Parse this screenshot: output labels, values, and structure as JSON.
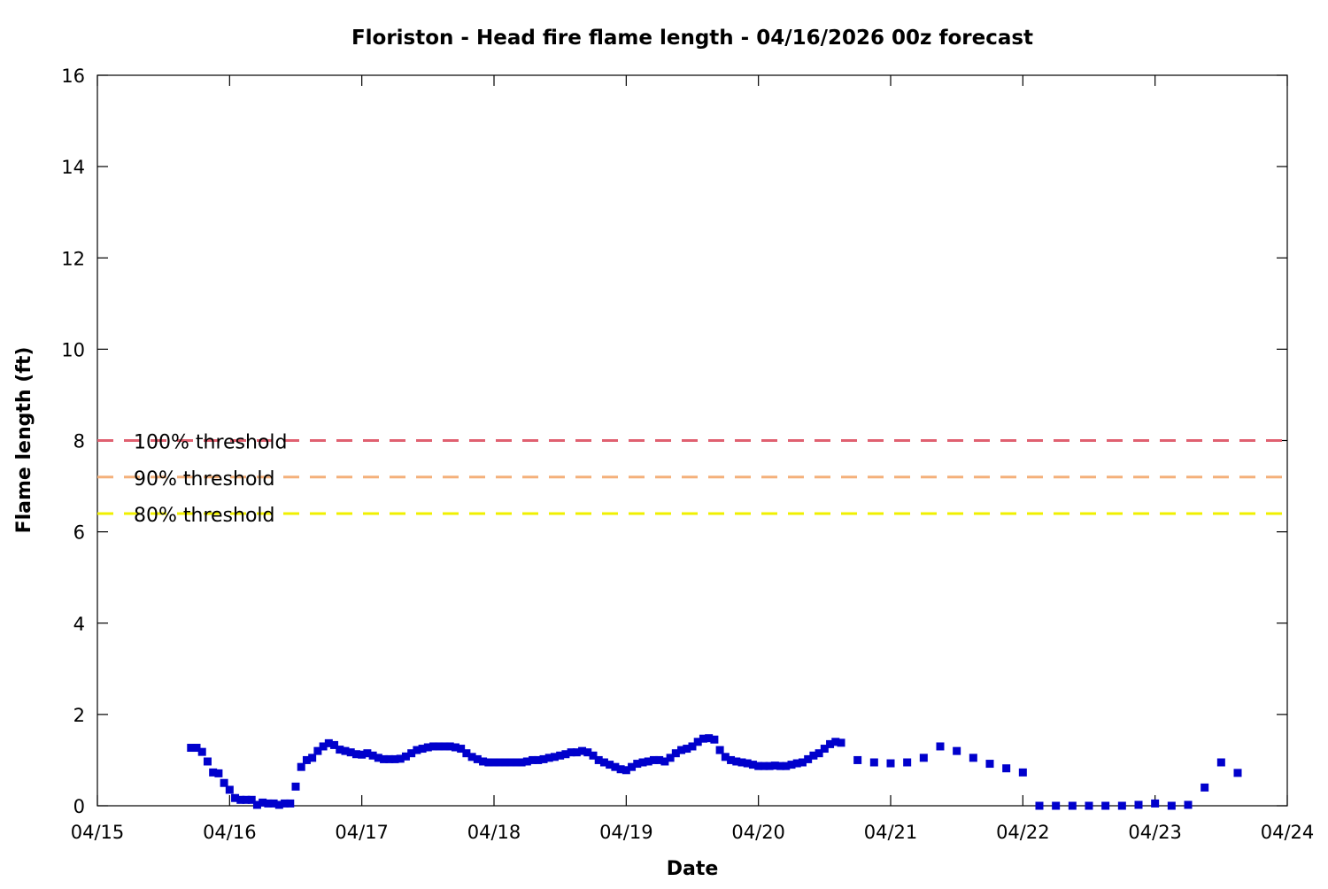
{
  "chart_data": {
    "type": "scatter",
    "title": "Floriston - Head fire flame length - 04/16/2026 00z forecast",
    "xlabel": "Date",
    "ylabel": "Flame length (ft)",
    "xlim": [
      "2026-04-15T00:00",
      "2026-04-24T00:00"
    ],
    "ylim": [
      0,
      16
    ],
    "x_ticks": [
      "04/15",
      "04/16",
      "04/17",
      "04/18",
      "04/19",
      "04/20",
      "04/21",
      "04/22",
      "04/23",
      "04/24"
    ],
    "y_ticks": [
      0,
      2,
      4,
      6,
      8,
      10,
      12,
      14,
      16
    ],
    "grid": false,
    "legend_position": "left",
    "colors": {
      "series": "#0000cc",
      "threshold_100": "#e06070",
      "threshold_90": "#f4b07a",
      "threshold_80": "#f0f000"
    },
    "thresholds": [
      {
        "name": "100% threshold",
        "value": 8.0,
        "color": "#e06070"
      },
      {
        "name": "90% threshold",
        "value": 7.2,
        "color": "#f4b07a"
      },
      {
        "name": "80% threshold",
        "value": 6.4,
        "color": "#f0f000"
      }
    ],
    "series": [
      {
        "name": "",
        "color": "#0000cc",
        "points": [
          [
            "04/15 17:00",
            1.27
          ],
          [
            "04/15 18:00",
            1.27
          ],
          [
            "04/15 19:00",
            1.18
          ],
          [
            "04/15 20:00",
            0.97
          ],
          [
            "04/15 21:00",
            0.73
          ],
          [
            "04/15 22:00",
            0.71
          ],
          [
            "04/15 23:00",
            0.5
          ],
          [
            "04/16 00:00",
            0.35
          ],
          [
            "04/16 01:00",
            0.17
          ],
          [
            "04/16 02:00",
            0.13
          ],
          [
            "04/16 03:00",
            0.13
          ],
          [
            "04/16 04:00",
            0.13
          ],
          [
            "04/16 05:00",
            0.02
          ],
          [
            "04/16 06:00",
            0.07
          ],
          [
            "04/16 07:00",
            0.05
          ],
          [
            "04/16 08:00",
            0.05
          ],
          [
            "04/16 09:00",
            0.02
          ],
          [
            "04/16 10:00",
            0.05
          ],
          [
            "04/16 11:00",
            0.05
          ],
          [
            "04/16 12:00",
            0.42
          ],
          [
            "04/16 13:00",
            0.85
          ],
          [
            "04/16 14:00",
            1.0
          ],
          [
            "04/16 15:00",
            1.05
          ],
          [
            "04/16 16:00",
            1.2
          ],
          [
            "04/16 17:00",
            1.3
          ],
          [
            "04/16 18:00",
            1.37
          ],
          [
            "04/16 19:00",
            1.33
          ],
          [
            "04/16 20:00",
            1.23
          ],
          [
            "04/16 21:00",
            1.2
          ],
          [
            "04/16 22:00",
            1.17
          ],
          [
            "04/16 23:00",
            1.13
          ],
          [
            "04/17 00:00",
            1.12
          ],
          [
            "04/17 01:00",
            1.15
          ],
          [
            "04/17 02:00",
            1.1
          ],
          [
            "04/17 03:00",
            1.05
          ],
          [
            "04/17 04:00",
            1.02
          ],
          [
            "04/17 05:00",
            1.02
          ],
          [
            "04/17 06:00",
            1.02
          ],
          [
            "04/17 07:00",
            1.03
          ],
          [
            "04/17 08:00",
            1.08
          ],
          [
            "04/17 09:00",
            1.15
          ],
          [
            "04/17 10:00",
            1.22
          ],
          [
            "04/17 11:00",
            1.25
          ],
          [
            "04/17 12:00",
            1.28
          ],
          [
            "04/17 13:00",
            1.3
          ],
          [
            "04/17 14:00",
            1.3
          ],
          [
            "04/17 15:00",
            1.3
          ],
          [
            "04/17 16:00",
            1.3
          ],
          [
            "04/17 17:00",
            1.28
          ],
          [
            "04/17 18:00",
            1.25
          ],
          [
            "04/17 19:00",
            1.15
          ],
          [
            "04/17 20:00",
            1.07
          ],
          [
            "04/17 21:00",
            1.02
          ],
          [
            "04/17 22:00",
            0.97
          ],
          [
            "04/17 23:00",
            0.95
          ],
          [
            "04/18 00:00",
            0.95
          ],
          [
            "04/18 01:00",
            0.95
          ],
          [
            "04/18 02:00",
            0.95
          ],
          [
            "04/18 03:00",
            0.95
          ],
          [
            "04/18 04:00",
            0.95
          ],
          [
            "04/18 05:00",
            0.95
          ],
          [
            "04/18 06:00",
            0.97
          ],
          [
            "04/18 07:00",
            1.0
          ],
          [
            "04/18 08:00",
            1.0
          ],
          [
            "04/18 09:00",
            1.02
          ],
          [
            "04/18 10:00",
            1.05
          ],
          [
            "04/18 11:00",
            1.07
          ],
          [
            "04/18 12:00",
            1.1
          ],
          [
            "04/18 13:00",
            1.13
          ],
          [
            "04/18 14:00",
            1.17
          ],
          [
            "04/18 15:00",
            1.17
          ],
          [
            "04/18 16:00",
            1.2
          ],
          [
            "04/18 17:00",
            1.17
          ],
          [
            "04/18 18:00",
            1.1
          ],
          [
            "04/18 19:00",
            1.0
          ],
          [
            "04/18 20:00",
            0.95
          ],
          [
            "04/18 21:00",
            0.9
          ],
          [
            "04/18 22:00",
            0.85
          ],
          [
            "04/18 23:00",
            0.8
          ],
          [
            "04/19 00:00",
            0.78
          ],
          [
            "04/19 01:00",
            0.85
          ],
          [
            "04/19 02:00",
            0.92
          ],
          [
            "04/19 03:00",
            0.95
          ],
          [
            "04/19 04:00",
            0.97
          ],
          [
            "04/19 05:00",
            1.0
          ],
          [
            "04/19 06:00",
            1.0
          ],
          [
            "04/19 07:00",
            0.97
          ],
          [
            "04/19 08:00",
            1.05
          ],
          [
            "04/19 09:00",
            1.15
          ],
          [
            "04/19 10:00",
            1.22
          ],
          [
            "04/19 11:00",
            1.25
          ],
          [
            "04/19 12:00",
            1.3
          ],
          [
            "04/19 13:00",
            1.4
          ],
          [
            "04/19 14:00",
            1.47
          ],
          [
            "04/19 15:00",
            1.48
          ],
          [
            "04/19 16:00",
            1.45
          ],
          [
            "04/19 17:00",
            1.22
          ],
          [
            "04/19 18:00",
            1.07
          ],
          [
            "04/19 19:00",
            1.0
          ],
          [
            "04/19 20:00",
            0.97
          ],
          [
            "04/19 21:00",
            0.95
          ],
          [
            "04/19 22:00",
            0.93
          ],
          [
            "04/19 23:00",
            0.9
          ],
          [
            "04/20 00:00",
            0.87
          ],
          [
            "04/20 01:00",
            0.87
          ],
          [
            "04/20 02:00",
            0.87
          ],
          [
            "04/20 03:00",
            0.88
          ],
          [
            "04/20 04:00",
            0.87
          ],
          [
            "04/20 05:00",
            0.87
          ],
          [
            "04/20 06:00",
            0.9
          ],
          [
            "04/20 07:00",
            0.93
          ],
          [
            "04/20 08:00",
            0.95
          ],
          [
            "04/20 09:00",
            1.02
          ],
          [
            "04/20 10:00",
            1.1
          ],
          [
            "04/20 11:00",
            1.15
          ],
          [
            "04/20 12:00",
            1.25
          ],
          [
            "04/20 13:00",
            1.35
          ],
          [
            "04/20 14:00",
            1.4
          ],
          [
            "04/20 15:00",
            1.38
          ],
          [
            "04/20 18:00",
            1.0
          ],
          [
            "04/20 21:00",
            0.95
          ],
          [
            "04/21 00:00",
            0.93
          ],
          [
            "04/21 03:00",
            0.95
          ],
          [
            "04/21 06:00",
            1.05
          ],
          [
            "04/21 09:00",
            1.3
          ],
          [
            "04/21 12:00",
            1.2
          ],
          [
            "04/21 15:00",
            1.05
          ],
          [
            "04/21 18:00",
            0.92
          ],
          [
            "04/21 21:00",
            0.82
          ],
          [
            "04/22 00:00",
            0.73
          ],
          [
            "04/22 03:00",
            0.0
          ],
          [
            "04/22 06:00",
            0.0
          ],
          [
            "04/22 09:00",
            0.0
          ],
          [
            "04/22 12:00",
            0.0
          ],
          [
            "04/22 15:00",
            0.0
          ],
          [
            "04/22 18:00",
            0.0
          ],
          [
            "04/22 21:00",
            0.02
          ],
          [
            "04/23 00:00",
            0.05
          ],
          [
            "04/23 03:00",
            0.0
          ],
          [
            "04/23 06:00",
            0.02
          ],
          [
            "04/23 09:00",
            0.4
          ],
          [
            "04/23 12:00",
            0.95
          ],
          [
            "04/23 15:00",
            0.72
          ]
        ]
      }
    ]
  }
}
